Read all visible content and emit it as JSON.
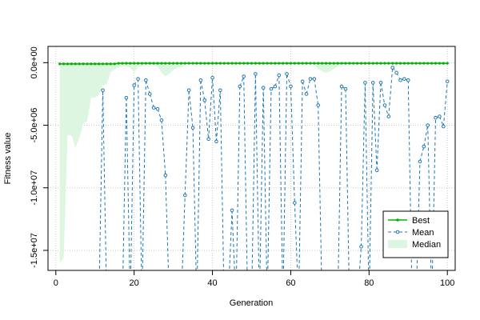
{
  "chart_data": {
    "type": "line",
    "title": "",
    "xlabel": "Generation",
    "ylabel": "Fitness value",
    "xlim": [
      -2,
      102
    ],
    "ylim": [
      -16600000,
      1300000
    ],
    "x_ticks": [
      0,
      20,
      40,
      60,
      80,
      100
    ],
    "y_ticks": [
      0,
      -5000000,
      -10000000,
      -15000000
    ],
    "y_tick_labels": [
      "0.0e+00",
      "-5.0e+06",
      "-1.0e+07",
      "-1.5e+07"
    ],
    "grid": true,
    "legend": {
      "position": "bottom-right",
      "entries": [
        "Best",
        "Mean",
        "Median"
      ]
    },
    "colors": {
      "best": "#00b300",
      "mean": "#1f78b4",
      "median": "#ddf6e1",
      "grid": "#c8c8c8"
    },
    "series": [
      {
        "name": "Best",
        "x": [
          1,
          2,
          3,
          4,
          5,
          6,
          7,
          8,
          9,
          10,
          11,
          12,
          13,
          14,
          15,
          16,
          17,
          18,
          19,
          20,
          21,
          22,
          23,
          24,
          25,
          26,
          27,
          28,
          29,
          30,
          31,
          32,
          33,
          34,
          35,
          36,
          37,
          38,
          39,
          40,
          41,
          42,
          43,
          44,
          45,
          46,
          47,
          48,
          49,
          50,
          51,
          52,
          53,
          54,
          55,
          56,
          57,
          58,
          59,
          60,
          61,
          62,
          63,
          64,
          65,
          66,
          67,
          68,
          69,
          70,
          71,
          72,
          73,
          74,
          75,
          76,
          77,
          78,
          79,
          80,
          81,
          82,
          83,
          84,
          85,
          86,
          87,
          88,
          89,
          90,
          91,
          92,
          93,
          94,
          95,
          96,
          97,
          98,
          99,
          100
        ],
        "values": [
          -100000,
          -100000,
          -100000,
          -100000,
          -100000,
          -100000,
          -100000,
          -100000,
          -100000,
          -100000,
          -100000,
          -100000,
          -100000,
          -100000,
          -100000,
          -50000,
          -50000,
          -50000,
          -50000,
          -50000,
          -50000,
          -50000,
          -50000,
          -50000,
          -50000,
          -50000,
          -50000,
          -50000,
          -50000,
          -50000,
          -50000,
          -50000,
          -50000,
          -50000,
          -50000,
          -50000,
          -50000,
          -50000,
          -50000,
          -50000,
          -50000,
          -50000,
          -50000,
          -50000,
          -50000,
          -50000,
          -50000,
          -50000,
          -50000,
          -50000,
          -50000,
          -50000,
          -50000,
          -50000,
          -50000,
          -50000,
          -50000,
          -50000,
          -50000,
          -50000,
          -50000,
          -50000,
          -50000,
          -50000,
          -50000,
          -50000,
          -50000,
          -50000,
          -50000,
          -50000,
          -50000,
          -50000,
          -50000,
          -50000,
          -50000,
          -50000,
          -50000,
          -50000,
          -50000,
          -50000,
          -50000,
          -50000,
          -50000,
          -50000,
          -50000,
          -50000,
          -50000,
          -50000,
          -50000,
          -50000,
          -50000,
          -50000,
          -50000,
          -50000,
          -50000,
          -50000,
          -50000,
          -50000,
          -50000,
          -50000
        ]
      },
      {
        "name": "Mean",
        "x": [
          1,
          2,
          3,
          4,
          5,
          6,
          7,
          8,
          9,
          10,
          11,
          12,
          13,
          14,
          15,
          16,
          17,
          18,
          19,
          20,
          21,
          22,
          23,
          24,
          25,
          26,
          27,
          28,
          29,
          30,
          31,
          32,
          33,
          34,
          35,
          36,
          37,
          38,
          39,
          40,
          41,
          42,
          43,
          44,
          45,
          46,
          47,
          48,
          49,
          50,
          51,
          52,
          53,
          54,
          55,
          56,
          57,
          58,
          59,
          60,
          61,
          62,
          63,
          64,
          65,
          66,
          67,
          68,
          69,
          70,
          71,
          72,
          73,
          74,
          75,
          76,
          77,
          78,
          79,
          80,
          81,
          82,
          83,
          84,
          85,
          86,
          87,
          88,
          89,
          90,
          91,
          92,
          93,
          94,
          95,
          96,
          97,
          98,
          99,
          100
        ],
        "values": [
          null,
          null,
          null,
          null,
          null,
          null,
          null,
          null,
          null,
          null,
          null,
          -2200000,
          null,
          null,
          null,
          null,
          null,
          -2800000,
          null,
          -1800000,
          -1300000,
          null,
          -1400000,
          -2500000,
          -3600000,
          -3700000,
          -4600000,
          -9000000,
          null,
          null,
          null,
          null,
          -10600000,
          -2200000,
          -5200000,
          null,
          -1400000,
          -3000000,
          -6100000,
          -1200000,
          -6300000,
          -2200000,
          null,
          null,
          -11800000,
          null,
          -1900000,
          -1100000,
          null,
          null,
          -900000,
          null,
          -2000000,
          null,
          -2100000,
          -1900000,
          -1000000,
          null,
          -900000,
          -1900000,
          -11200000,
          null,
          -1500000,
          -2500000,
          -1300000,
          -1300000,
          -3400000,
          null,
          null,
          null,
          null,
          null,
          -1900000,
          -2100000,
          null,
          null,
          null,
          -14700000,
          -1600000,
          null,
          -1600000,
          -8600000,
          -1600000,
          -3400000,
          -4300000,
          -400000,
          -800000,
          -1400000,
          -1300000,
          -1400000,
          null,
          null,
          -7900000,
          -6700000,
          -5000000,
          null,
          -4400000,
          -4300000,
          -5100000,
          -1500000
        ]
      },
      {
        "name": "Median",
        "x": [
          1,
          2,
          3,
          4,
          5,
          6,
          7,
          8,
          9,
          10,
          11,
          12,
          13,
          14,
          15,
          16,
          17,
          18,
          19,
          20,
          21,
          22,
          23,
          24,
          25,
          26,
          27,
          28,
          29,
          30,
          31,
          32,
          33,
          34,
          35,
          36,
          37,
          38,
          39,
          40,
          41,
          42,
          43,
          44,
          45,
          46,
          47,
          48,
          49,
          50,
          51,
          52,
          53,
          54,
          55,
          56,
          57,
          58,
          59,
          60,
          61,
          62,
          63,
          64,
          65,
          66,
          67,
          68,
          69,
          70,
          71,
          72,
          73,
          74,
          75,
          76,
          77,
          78,
          79,
          80,
          81,
          82,
          83,
          84,
          85,
          86,
          87,
          88,
          89,
          90,
          91,
          92,
          93,
          94,
          95,
          96,
          97,
          98,
          99,
          100
        ],
        "values": [
          -16000000,
          -15600000,
          -5800000,
          -5800000,
          -6800000,
          -6000000,
          -4900000,
          -4700000,
          -2800000,
          -2800000,
          -2600000,
          -1800000,
          -1700000,
          -800000,
          -500000,
          -400000,
          -200000,
          -300000,
          -400000,
          -800000,
          -300000,
          -300000,
          -100000,
          -100000,
          -200000,
          -300000,
          -800000,
          -1100000,
          -900000,
          -600000,
          -400000,
          -400000,
          -100000,
          -100000,
          -100000,
          -100000,
          -100000,
          -100000,
          -100000,
          -100000,
          -100000,
          -100000,
          -100000,
          -100000,
          -100000,
          -100000,
          -100000,
          -100000,
          -100000,
          -100000,
          -100000,
          -100000,
          -100000,
          -100000,
          -100000,
          -100000,
          -100000,
          -100000,
          -100000,
          -100000,
          -100000,
          -100000,
          -100000,
          -100000,
          -100000,
          -100000,
          -500000,
          -700000,
          -800000,
          -700000,
          -500000,
          -300000,
          -100000,
          -100000,
          -100000,
          -100000,
          -100000,
          -100000,
          -100000,
          -100000,
          -100000,
          -100000,
          -100000,
          -100000,
          -100000,
          -100000,
          -100000,
          -100000,
          -100000,
          -100000,
          -100000,
          -100000,
          -100000,
          -100000,
          -100000,
          -100000,
          -100000,
          -100000,
          -100000,
          -100000
        ]
      }
    ]
  }
}
